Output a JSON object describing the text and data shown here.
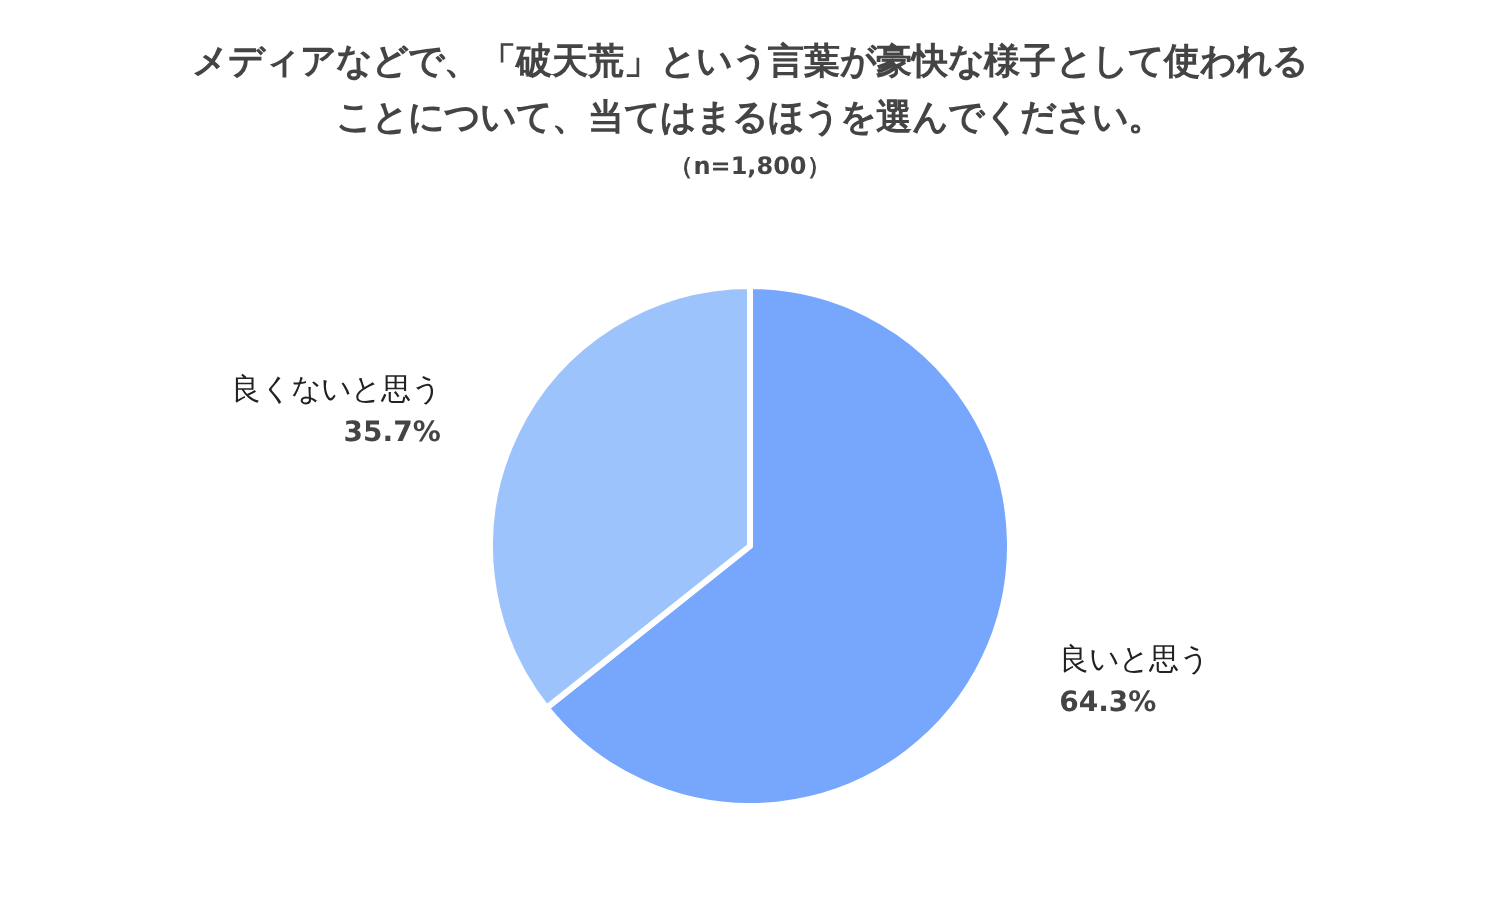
{
  "chart_data": {
    "type": "pie",
    "title": "メディアなどで、「破天荒」という言葉が豪快な様子として使われることについて、当てはまるほうを選んでください。",
    "subtitle": "（n=1,800）",
    "categories": [
      "良いと思う",
      "良くないと思う"
    ],
    "values": [
      64.3,
      35.7
    ],
    "value_labels": [
      "64.3%",
      "35.7%"
    ],
    "colors": [
      "#76a7fc",
      "#9dc3fc"
    ],
    "legend": false
  }
}
